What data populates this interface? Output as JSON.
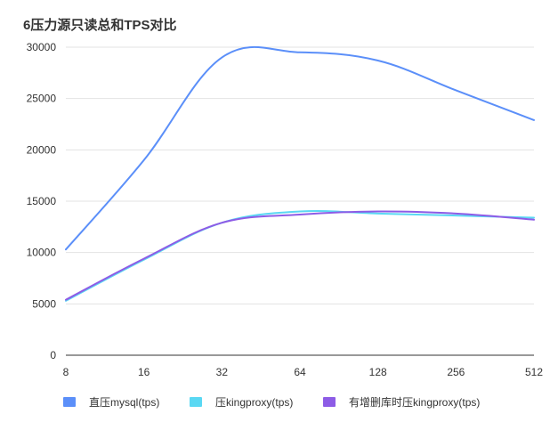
{
  "chart_data": {
    "type": "line",
    "title": "6压力源只读总和TPS对比",
    "x": [
      8,
      16,
      32,
      64,
      128,
      256,
      512
    ],
    "x_ticks": [
      "8",
      "16",
      "32",
      "64",
      "128",
      "256",
      "512"
    ],
    "x_scale": "log2",
    "xlabel": "",
    "ylabel": "",
    "ylim": [
      0,
      30000
    ],
    "y_ticks": [
      "0",
      "5000",
      "10000",
      "15000",
      "20000",
      "25000",
      "30000"
    ],
    "grid": "horizontal",
    "legend_position": "bottom",
    "series": [
      {
        "name": "直压mysql(tps)",
        "color": "#5B8FF9",
        "values": [
          10300,
          19000,
          29000,
          29500,
          28700,
          25800,
          22900
        ]
      },
      {
        "name": "压kingproxy(tps)",
        "color": "#5AD8F3",
        "values": [
          5300,
          9300,
          12900,
          14000,
          13800,
          13600,
          13400
        ]
      },
      {
        "name": "有增删库时压kingproxy(tps)",
        "color": "#8D5CE6",
        "values": [
          5400,
          9400,
          12900,
          13700,
          14000,
          13800,
          13200
        ]
      }
    ]
  }
}
